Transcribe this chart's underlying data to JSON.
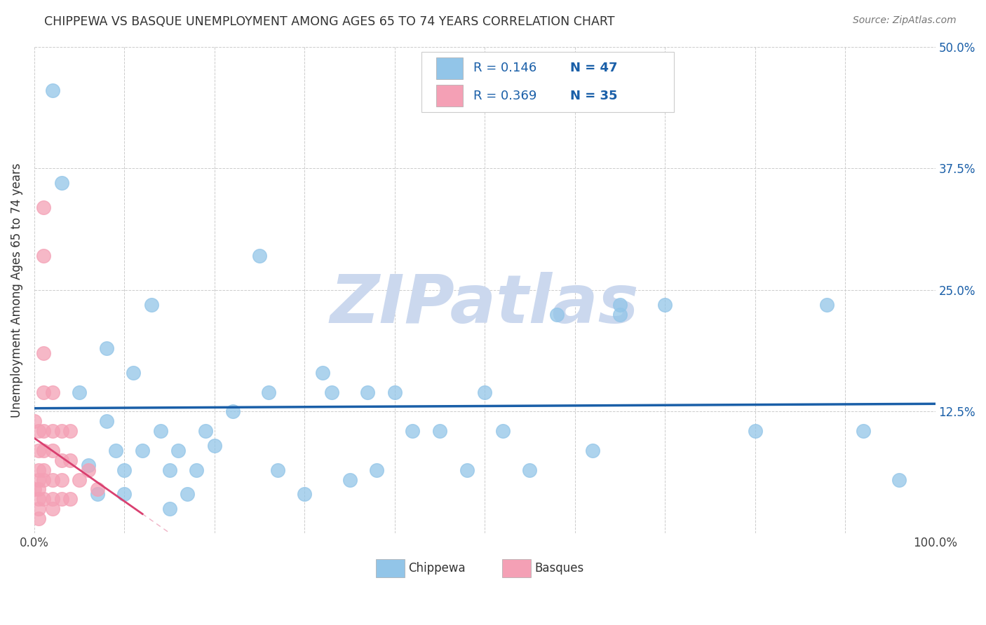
{
  "title": "CHIPPEWA VS BASQUE UNEMPLOYMENT AMONG AGES 65 TO 74 YEARS CORRELATION CHART",
  "source": "Source: ZipAtlas.com",
  "ylabel": "Unemployment Among Ages 65 to 74 years",
  "yticks": [
    0.0,
    0.125,
    0.25,
    0.375,
    0.5
  ],
  "ytick_labels": [
    "",
    "12.5%",
    "25.0%",
    "37.5%",
    "50.0%"
  ],
  "xlim": [
    0.0,
    1.0
  ],
  "ylim": [
    0.0,
    0.5
  ],
  "legend_r1": "0.146",
  "legend_n1": "47",
  "legend_r2": "0.369",
  "legend_n2": "35",
  "chippewa_color": "#92C5E8",
  "basque_color": "#F4A0B5",
  "regression_blue": "#1A5FA8",
  "regression_pink": "#D94070",
  "watermark": "ZIPatlas",
  "watermark_color": "#CBD8EE",
  "chippewa_x": [
    0.02,
    0.03,
    0.05,
    0.06,
    0.07,
    0.08,
    0.08,
    0.09,
    0.1,
    0.1,
    0.11,
    0.12,
    0.13,
    0.14,
    0.15,
    0.15,
    0.16,
    0.17,
    0.18,
    0.19,
    0.2,
    0.22,
    0.25,
    0.26,
    0.27,
    0.3,
    0.32,
    0.33,
    0.35,
    0.37,
    0.38,
    0.4,
    0.42,
    0.45,
    0.48,
    0.5,
    0.52,
    0.55,
    0.58,
    0.62,
    0.65,
    0.65,
    0.7,
    0.8,
    0.88,
    0.92,
    0.96
  ],
  "chippewa_y": [
    0.455,
    0.36,
    0.145,
    0.07,
    0.04,
    0.19,
    0.115,
    0.085,
    0.065,
    0.04,
    0.165,
    0.085,
    0.235,
    0.105,
    0.065,
    0.025,
    0.085,
    0.04,
    0.065,
    0.105,
    0.09,
    0.125,
    0.285,
    0.145,
    0.065,
    0.04,
    0.165,
    0.145,
    0.055,
    0.145,
    0.065,
    0.145,
    0.105,
    0.105,
    0.065,
    0.145,
    0.105,
    0.065,
    0.225,
    0.085,
    0.225,
    0.235,
    0.235,
    0.105,
    0.235,
    0.105,
    0.055
  ],
  "basque_x": [
    0.0,
    0.0,
    0.005,
    0.005,
    0.005,
    0.005,
    0.005,
    0.005,
    0.005,
    0.005,
    0.01,
    0.01,
    0.01,
    0.01,
    0.01,
    0.01,
    0.01,
    0.01,
    0.01,
    0.02,
    0.02,
    0.02,
    0.02,
    0.02,
    0.02,
    0.03,
    0.03,
    0.03,
    0.03,
    0.04,
    0.04,
    0.04,
    0.05,
    0.06,
    0.07
  ],
  "basque_y": [
    0.115,
    0.045,
    0.105,
    0.085,
    0.065,
    0.055,
    0.045,
    0.035,
    0.025,
    0.015,
    0.335,
    0.285,
    0.185,
    0.145,
    0.105,
    0.085,
    0.065,
    0.055,
    0.035,
    0.145,
    0.105,
    0.085,
    0.055,
    0.035,
    0.025,
    0.105,
    0.075,
    0.055,
    0.035,
    0.105,
    0.075,
    0.035,
    0.055,
    0.065,
    0.045
  ]
}
